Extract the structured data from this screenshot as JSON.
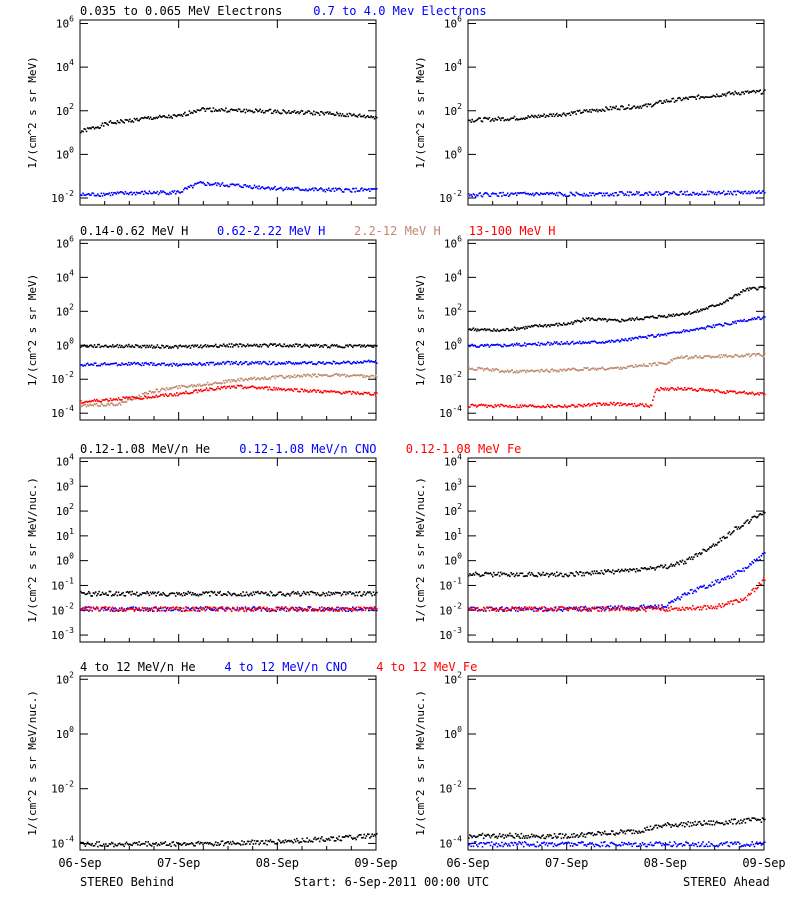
{
  "footer": {
    "left": "STEREO Behind",
    "center": "Start:  6-Sep-2011 00:00 UTC",
    "right": "STEREO Ahead"
  },
  "chart_data": [
    {
      "type": "scatter",
      "panel": "electrons",
      "ylabel": "1/(cm^2 s sr MeV)",
      "yscale": "log",
      "yticks": [
        "10^-2",
        "10^0",
        "10^2",
        "10^4",
        "10^6"
      ],
      "x_ticks": [
        "06-Sep",
        "07-Sep",
        "08-Sep",
        "09-Sep"
      ],
      "legend": [
        {
          "text": "0.035 to 0.065 MeV Electrons",
          "color": "#000000"
        },
        {
          "text": "0.7 to 4.0 Mev Electrons",
          "color": "#0000ff"
        }
      ],
      "behind": {
        "series": [
          {
            "name": "0.035 to 0.065 MeV Electrons",
            "color": "#000000",
            "points": [
              [
                0,
                12
              ],
              [
                0.3,
                30
              ],
              [
                0.7,
                50
              ],
              [
                1,
                60
              ],
              [
                1.2,
                130
              ],
              [
                1.6,
                110
              ],
              [
                2,
                100
              ],
              [
                2.5,
                80
              ],
              [
                3,
                55
              ]
            ]
          },
          {
            "name": "0.7 to 4.0 Mev Electrons",
            "color": "#0000ff",
            "points": [
              [
                0,
                0.015
              ],
              [
                0.5,
                0.018
              ],
              [
                1,
                0.02
              ],
              [
                1.2,
                0.05
              ],
              [
                1.6,
                0.04
              ],
              [
                2,
                0.03
              ],
              [
                2.5,
                0.025
              ],
              [
                3,
                0.025
              ]
            ]
          }
        ]
      },
      "ahead": {
        "series": [
          {
            "name": "0.035 to 0.065 MeV Electrons",
            "color": "#000000",
            "points": [
              [
                0,
                40
              ],
              [
                0.5,
                50
              ],
              [
                1,
                80
              ],
              [
                1.5,
                150
              ],
              [
                1.8,
                180
              ],
              [
                2,
                300
              ],
              [
                2.4,
                500
              ],
              [
                2.7,
                700
              ],
              [
                3,
                800
              ]
            ]
          },
          {
            "name": "0.7 to 4.0 Mev Electrons",
            "color": "#0000ff",
            "points": [
              [
                0,
                0.015
              ],
              [
                0.5,
                0.016
              ],
              [
                1,
                0.016
              ],
              [
                1.5,
                0.017
              ],
              [
                2,
                0.018
              ],
              [
                2.5,
                0.018
              ],
              [
                3,
                0.02
              ]
            ]
          }
        ]
      }
    },
    {
      "type": "scatter",
      "panel": "protons",
      "ylabel": "1/(cm^2 s sr MeV)",
      "yscale": "log",
      "yticks": [
        "10^-4",
        "10^-2",
        "10^0",
        "10^2",
        "10^4",
        "10^6"
      ],
      "x_ticks": [
        "06-Sep",
        "07-Sep",
        "08-Sep",
        "09-Sep"
      ],
      "legend": [
        {
          "text": "0.14-0.62 MeV H",
          "color": "#000000"
        },
        {
          "text": "0.62-2.22 MeV H",
          "color": "#0000ff"
        },
        {
          "text": "2.2-12 MeV H",
          "color": "#c0886e"
        },
        {
          "text": "13-100 MeV H",
          "color": "#ff0000"
        }
      ],
      "behind": {
        "series": [
          {
            "name": "0.14-0.62 MeV H",
            "color": "#000000",
            "points": [
              [
                0,
                1
              ],
              [
                0.5,
                1
              ],
              [
                1,
                0.9
              ],
              [
                1.5,
                1.1
              ],
              [
                2,
                1.1
              ],
              [
                2.5,
                1
              ],
              [
                3,
                1
              ]
            ]
          },
          {
            "name": "0.62-2.22 MeV H",
            "color": "#0000ff",
            "points": [
              [
                0,
                0.08
              ],
              [
                0.5,
                0.09
              ],
              [
                1,
                0.08
              ],
              [
                1.5,
                0.1
              ],
              [
                2,
                0.1
              ],
              [
                2.5,
                0.1
              ],
              [
                3,
                0.12
              ]
            ]
          },
          {
            "name": "2.2-12 MeV H",
            "color": "#c0886e",
            "points": [
              [
                0,
                0.0003
              ],
              [
                0.4,
                0.0004
              ],
              [
                0.7,
                0.002
              ],
              [
                1,
                0.004
              ],
              [
                1.3,
                0.006
              ],
              [
                1.6,
                0.01
              ],
              [
                2,
                0.015
              ],
              [
                2.5,
                0.02
              ],
              [
                3,
                0.015
              ]
            ]
          },
          {
            "name": "13-100 MeV H",
            "color": "#ff0000",
            "points": [
              [
                0,
                0.0005
              ],
              [
                0.4,
                0.0008
              ],
              [
                0.7,
                0.001
              ],
              [
                1,
                0.0015
              ],
              [
                1.3,
                0.003
              ],
              [
                1.6,
                0.004
              ],
              [
                2,
                0.003
              ],
              [
                2.5,
                0.002
              ],
              [
                3,
                0.0015
              ]
            ]
          }
        ]
      },
      "ahead": {
        "series": [
          {
            "name": "0.14-0.62 MeV H",
            "color": "#000000",
            "points": [
              [
                0,
                10
              ],
              [
                0.3,
                8
              ],
              [
                0.7,
                15
              ],
              [
                1,
                20
              ],
              [
                1.2,
                40
              ],
              [
                1.5,
                30
              ],
              [
                2,
                60
              ],
              [
                2.3,
                100
              ],
              [
                2.6,
                400
              ],
              [
                2.8,
                2000
              ],
              [
                3,
                3000
              ]
            ]
          },
          {
            "name": "0.62-2.22 MeV H",
            "color": "#0000ff",
            "points": [
              [
                0,
                1
              ],
              [
                0.5,
                1.2
              ],
              [
                1,
                1.5
              ],
              [
                1.5,
                2
              ],
              [
                2,
                5
              ],
              [
                2.5,
                15
              ],
              [
                3,
                50
              ]
            ]
          },
          {
            "name": "2.2-12 MeV H",
            "color": "#c0886e",
            "points": [
              [
                0,
                0.05
              ],
              [
                0.5,
                0.03
              ],
              [
                1,
                0.04
              ],
              [
                1.5,
                0.05
              ],
              [
                2,
                0.1
              ],
              [
                2.1,
                0.2
              ],
              [
                2.5,
                0.25
              ],
              [
                3,
                0.3
              ]
            ]
          },
          {
            "name": "13-100 MeV H",
            "color": "#ff0000",
            "points": [
              [
                0,
                0.0003
              ],
              [
                0.5,
                0.0003
              ],
              [
                1,
                0.0003
              ],
              [
                1.5,
                0.0004
              ],
              [
                1.85,
                0.0003
              ],
              [
                1.9,
                0.003
              ],
              [
                2.2,
                0.003
              ],
              [
                2.6,
                0.002
              ],
              [
                3,
                0.0015
              ]
            ]
          }
        ]
      }
    },
    {
      "type": "scatter",
      "panel": "suprathermal",
      "ylabel": "1/(cm^2 s sr MeV/nuc.)",
      "yscale": "log",
      "yticks": [
        "10^-3",
        "10^-2",
        "10^-1",
        "10^0",
        "10^1",
        "10^2",
        "10^3",
        "10^4"
      ],
      "x_ticks": [
        "06-Sep",
        "07-Sep",
        "08-Sep",
        "09-Sep"
      ],
      "legend": [
        {
          "text": "0.12-1.08 MeV/n He",
          "color": "#000000"
        },
        {
          "text": "0.12-1.08 MeV/n CNO",
          "color": "#0000ff"
        },
        {
          "text": "0.12-1.08 MeV Fe",
          "color": "#ff0000"
        }
      ],
      "behind": {
        "series": [
          {
            "name": "0.12-1.08 MeV/n He",
            "color": "#000000",
            "points": [
              [
                0,
                0.05
              ],
              [
                1,
                0.05
              ],
              [
                2,
                0.05
              ],
              [
                3,
                0.05
              ]
            ]
          },
          {
            "name": "0.12-1.08 MeV/n CNO",
            "color": "#0000ff",
            "points": [
              [
                0,
                0.012
              ],
              [
                1,
                0.012
              ],
              [
                2,
                0.012
              ],
              [
                3,
                0.012
              ]
            ]
          },
          {
            "name": "0.12-1.08 MeV Fe",
            "color": "#ff0000",
            "points": [
              [
                0,
                0.012
              ],
              [
                1,
                0.012
              ],
              [
                2,
                0.012
              ],
              [
                3,
                0.012
              ]
            ]
          }
        ]
      },
      "ahead": {
        "series": [
          {
            "name": "0.12-1.08 MeV/n He",
            "color": "#000000",
            "points": [
              [
                0,
                0.3
              ],
              [
                0.5,
                0.3
              ],
              [
                1,
                0.3
              ],
              [
                1.5,
                0.4
              ],
              [
                2,
                0.6
              ],
              [
                2.2,
                1
              ],
              [
                2.5,
                5
              ],
              [
                2.7,
                20
              ],
              [
                3,
                100
              ]
            ]
          },
          {
            "name": "0.12-1.08 MeV/n CNO",
            "color": "#0000ff",
            "points": [
              [
                0,
                0.012
              ],
              [
                1,
                0.012
              ],
              [
                2,
                0.015
              ],
              [
                2.2,
                0.05
              ],
              [
                2.4,
                0.1
              ],
              [
                2.6,
                0.2
              ],
              [
                2.8,
                0.5
              ],
              [
                3,
                2
              ]
            ]
          },
          {
            "name": "0.12-1.08 MeV Fe",
            "color": "#ff0000",
            "points": [
              [
                0,
                0.012
              ],
              [
                1,
                0.012
              ],
              [
                2,
                0.012
              ],
              [
                2.5,
                0.015
              ],
              [
                2.8,
                0.03
              ],
              [
                3,
                0.2
              ]
            ]
          }
        ]
      }
    },
    {
      "type": "scatter",
      "panel": "heavy",
      "ylabel": "1/(cm^2 s sr MeV/nuc.)",
      "yscale": "log",
      "yticks": [
        "10^-4",
        "10^-2",
        "10^0",
        "10^2"
      ],
      "x_ticks": [
        "06-Sep",
        "07-Sep",
        "08-Sep",
        "09-Sep"
      ],
      "legend": [
        {
          "text": "4 to 12 MeV/n He",
          "color": "#000000"
        },
        {
          "text": "4 to 12 MeV/n CNO",
          "color": "#0000ff"
        },
        {
          "text": "4 to 12 MeV Fe",
          "color": "#ff0000"
        }
      ],
      "behind": {
        "series": [
          {
            "name": "4 to 12 MeV/n He",
            "color": "#000000",
            "points": [
              [
                0,
                0.0001
              ],
              [
                1,
                0.0001
              ],
              [
                2,
                0.00012
              ],
              [
                3,
                0.0002
              ]
            ]
          }
        ]
      },
      "ahead": {
        "series": [
          {
            "name": "4 to 12 MeV/n He",
            "color": "#000000",
            "points": [
              [
                0,
                0.0002
              ],
              [
                1,
                0.0002
              ],
              [
                1.7,
                0.0003
              ],
              [
                2,
                0.0005
              ],
              [
                2.5,
                0.0006
              ],
              [
                3,
                0.0008
              ]
            ]
          },
          {
            "name": "4 to 12 MeV/n CNO",
            "color": "#0000ff",
            "points": [
              [
                0,
                0.0001
              ],
              [
                1,
                0.0001
              ],
              [
                2,
                0.0001
              ],
              [
                3,
                0.0001
              ]
            ]
          }
        ]
      }
    }
  ]
}
